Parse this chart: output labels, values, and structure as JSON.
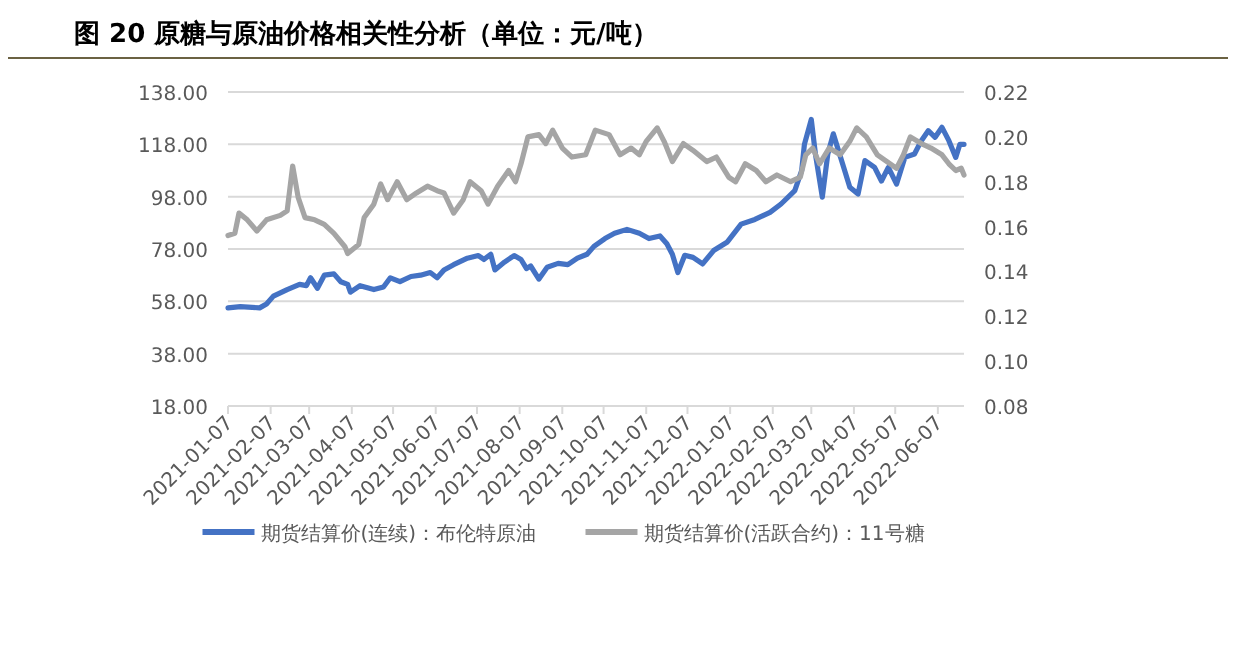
{
  "chart_data": {
    "type": "line",
    "title": "图 20 原糖与原油价格相关性分析（单位：元/吨）",
    "xlim": [
      "2021-01-07",
      "2022-06-26"
    ],
    "xticks": [
      "2021-01-07",
      "2021-02-07",
      "2021-03-07",
      "2021-04-07",
      "2021-05-07",
      "2021-06-07",
      "2021-07-07",
      "2021-08-07",
      "2021-09-07",
      "2021-10-07",
      "2021-11-07",
      "2021-12-07",
      "2022-01-07",
      "2022-02-07",
      "2022-03-07",
      "2022-04-07",
      "2022-05-07",
      "2022-06-07"
    ],
    "ylim": [
      18,
      138
    ],
    "yticks": [
      {
        "value": 18,
        "label": "18.00"
      },
      {
        "value": 38,
        "label": "38.00"
      },
      {
        "value": 58,
        "label": "58.00"
      },
      {
        "value": 78,
        "label": "78.00"
      },
      {
        "value": 98,
        "label": "98.00"
      },
      {
        "value": 118,
        "label": "118.00"
      },
      {
        "value": 138,
        "label": "138.00"
      }
    ],
    "y2lim": [
      0.08,
      0.22
    ],
    "y2ticks": [
      0.08,
      {
        "value": 0.1,
        "label": "0.10"
      },
      0.12,
      0.14,
      0.16,
      0.18,
      {
        "value": 0.2,
        "label": "0.20"
      },
      0.22
    ],
    "grid": "y",
    "legend": "bottom",
    "marker": "none",
    "line_style": "solid",
    "series": [
      {
        "name": "期货结算价(连续)：布伦特原油",
        "color": "#4472c4",
        "x": [
          "2021-01-07",
          "2021-01-16",
          "2021-01-30",
          "2021-02-04",
          "2021-02-09",
          "2021-02-19",
          "2021-02-28",
          "2021-03-05",
          "2021-03-08",
          "2021-03-13",
          "2021-03-18",
          "2021-03-25",
          "2021-03-30",
          "2021-04-04",
          "2021-04-06",
          "2021-04-13",
          "2021-04-23",
          "2021-04-30",
          "2021-05-05",
          "2021-05-12",
          "2021-05-20",
          "2021-05-27",
          "2021-06-03",
          "2021-06-08",
          "2021-06-13",
          "2021-06-20",
          "2021-06-30",
          "2021-07-08",
          "2021-07-12",
          "2021-07-17",
          "2021-07-20",
          "2021-07-27",
          "2021-08-03",
          "2021-08-08",
          "2021-08-12",
          "2021-08-15",
          "2021-08-21",
          "2021-08-27",
          "2021-09-04",
          "2021-09-11",
          "2021-09-18",
          "2021-09-25",
          "2021-09-30",
          "2021-10-08",
          "2021-10-15",
          "2021-10-24",
          "2021-11-02",
          "2021-11-09",
          "2021-11-17",
          "2021-11-22",
          "2021-11-26",
          "2021-11-30",
          "2021-12-05",
          "2021-12-11",
          "2021-12-18",
          "2021-12-26",
          "2022-01-05",
          "2022-01-15",
          "2022-01-25",
          "2022-02-05",
          "2022-02-13",
          "2022-02-23",
          "2022-02-28",
          "2022-03-02",
          "2022-03-07",
          "2022-03-10",
          "2022-03-15",
          "2022-03-19",
          "2022-03-23",
          "2022-03-29",
          "2022-04-04",
          "2022-04-10",
          "2022-04-15",
          "2022-04-22",
          "2022-04-27",
          "2022-05-02",
          "2022-05-08",
          "2022-05-14",
          "2022-05-21",
          "2022-05-26",
          "2022-05-31",
          "2022-06-05",
          "2022-06-10",
          "2022-06-15",
          "2022-06-20",
          "2022-06-23",
          "2022-06-26"
        ],
        "values": [
          55.5,
          56,
          55.5,
          57,
          60,
          62.5,
          64.5,
          64,
          67,
          63,
          68,
          68.5,
          65.5,
          64.5,
          61.5,
          64,
          62.5,
          63.5,
          67,
          65.5,
          67.5,
          68,
          69,
          67,
          70,
          72,
          74.5,
          75.5,
          74,
          76,
          70,
          73,
          75.5,
          74,
          70.5,
          71.5,
          66.5,
          71,
          72.5,
          72,
          74.5,
          76,
          79,
          82,
          84,
          85.5,
          84,
          82,
          83,
          80,
          76,
          69,
          75.6,
          74.8,
          72.3,
          77.4,
          80.7,
          87.5,
          89.3,
          92,
          95.2,
          100.3,
          108,
          118,
          127.5,
          114.3,
          97.8,
          114.3,
          122,
          111.8,
          101.6,
          99,
          111.8,
          109.2,
          104,
          109.2,
          102.8,
          113,
          114.3,
          119.4,
          123.2,
          120.7,
          124.5,
          119.4,
          113,
          118,
          118
        ]
      },
      {
        "name": "期货结算价(活跃合约)：11号糖",
        "color": "#a5a5a5",
        "axis": "y2",
        "x": [
          "2021-01-07",
          "2021-01-12",
          "2021-01-15",
          "2021-01-21",
          "2021-01-28",
          "2021-02-04",
          "2021-02-14",
          "2021-02-19",
          "2021-02-23",
          "2021-02-27",
          "2021-03-04",
          "2021-03-11",
          "2021-03-18",
          "2021-03-25",
          "2021-04-02",
          "2021-04-04",
          "2021-04-12",
          "2021-04-16",
          "2021-04-23",
          "2021-04-28",
          "2021-05-03",
          "2021-05-10",
          "2021-05-17",
          "2021-05-24",
          "2021-06-01",
          "2021-06-08",
          "2021-06-13",
          "2021-06-20",
          "2021-06-27",
          "2021-07-02",
          "2021-07-10",
          "2021-07-15",
          "2021-07-22",
          "2021-07-30",
          "2021-08-04",
          "2021-08-08",
          "2021-08-13",
          "2021-08-21",
          "2021-08-26",
          "2021-08-31",
          "2021-09-07",
          "2021-09-14",
          "2021-09-24",
          "2021-10-01",
          "2021-10-11",
          "2021-10-19",
          "2021-10-27",
          "2021-11-02",
          "2021-11-07",
          "2021-11-15",
          "2021-11-20",
          "2021-11-26",
          "2021-12-04",
          "2021-12-11",
          "2021-12-21",
          "2021-12-28",
          "2022-01-06",
          "2022-01-11",
          "2022-01-18",
          "2022-01-26",
          "2022-02-02",
          "2022-02-10",
          "2022-02-20",
          "2022-02-27",
          "2022-03-03",
          "2022-03-08",
          "2022-03-13",
          "2022-03-20",
          "2022-03-28",
          "2022-04-04",
          "2022-04-09",
          "2022-04-16",
          "2022-04-24",
          "2022-05-01",
          "2022-05-08",
          "2022-05-13",
          "2022-05-18",
          "2022-05-26",
          "2022-06-02",
          "2022-06-10",
          "2022-06-15",
          "2022-06-20",
          "2022-06-24",
          "2022-06-26"
        ],
        "values": [
          0.156,
          0.157,
          0.166,
          0.163,
          0.158,
          0.163,
          0.165,
          0.167,
          0.187,
          0.173,
          0.164,
          0.163,
          0.161,
          0.157,
          0.151,
          0.148,
          0.152,
          0.164,
          0.17,
          0.179,
          0.172,
          0.18,
          0.172,
          0.175,
          0.178,
          0.176,
          0.175,
          0.166,
          0.172,
          0.18,
          0.176,
          0.17,
          0.178,
          0.185,
          0.18,
          0.188,
          0.2,
          0.201,
          0.197,
          0.203,
          0.195,
          0.191,
          0.192,
          0.203,
          0.201,
          0.192,
          0.195,
          0.192,
          0.198,
          0.204,
          0.198,
          0.189,
          0.197,
          0.194,
          0.189,
          0.191,
          0.182,
          0.18,
          0.188,
          0.185,
          0.18,
          0.183,
          0.18,
          0.182,
          0.192,
          0.195,
          0.188,
          0.195,
          0.192,
          0.198,
          0.204,
          0.2,
          0.192,
          0.189,
          0.186,
          0.192,
          0.2,
          0.197,
          0.195,
          0.192,
          0.188,
          0.185,
          0.186,
          0.183
        ]
      }
    ]
  }
}
